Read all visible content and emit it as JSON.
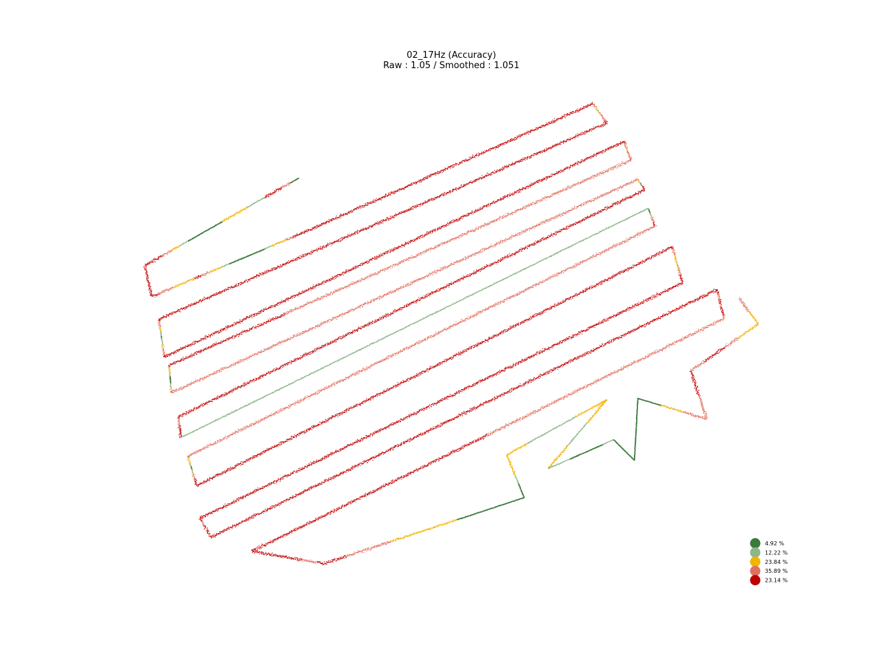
{
  "chart_data": {
    "type": "scatter",
    "title": "02_17Hz (Accuracy)",
    "subtitle": "Raw : 1.05 / Smoothed : 1.051",
    "xlabel": "",
    "ylabel": "",
    "axes_visible": false,
    "grid": false,
    "legend_placement": "bottom-right",
    "description": "GPS track of serpentine field passes, points colored by accuracy class",
    "legend": [
      {
        "label": "4.92 %",
        "value": 4.92,
        "color": "#3a7a3a"
      },
      {
        "label": "12.22 %",
        "value": 12.22,
        "color": "#8fb58a"
      },
      {
        "label": "23.84 %",
        "value": 23.84,
        "color": "#f2b400"
      },
      {
        "label": "35.89 %",
        "value": 35.89,
        "color": "#e07060"
      },
      {
        "label": "23.14 %",
        "value": 23.14,
        "color": "#c00000"
      }
    ],
    "track": {
      "vertices": [
        [
          433,
          258
        ],
        [
          210,
          385
        ],
        [
          220,
          430
        ],
        [
          445,
          335
        ],
        [
          860,
          150
        ],
        [
          880,
          178
        ],
        [
          230,
          463
        ],
        [
          238,
          518
        ],
        [
          905,
          205
        ],
        [
          915,
          232
        ],
        [
          245,
          530
        ],
        [
          248,
          570
        ],
        [
          925,
          260
        ],
        [
          935,
          275
        ],
        [
          258,
          605
        ],
        [
          262,
          635
        ],
        [
          940,
          302
        ],
        [
          950,
          328
        ],
        [
          272,
          662
        ],
        [
          285,
          705
        ],
        [
          975,
          358
        ],
        [
          990,
          410
        ],
        [
          290,
          752
        ],
        [
          305,
          780
        ],
        [
          1040,
          420
        ],
        [
          1050,
          462
        ],
        [
          365,
          800
        ],
        [
          470,
          818
        ],
        [
          760,
          722
        ],
        [
          735,
          660
        ],
        [
          880,
          580
        ],
        [
          795,
          680
        ],
        [
          890,
          638
        ],
        [
          920,
          668
        ],
        [
          925,
          578
        ],
        [
          1025,
          608
        ],
        [
          1002,
          538
        ],
        [
          1100,
          470
        ],
        [
          1072,
          432
        ]
      ],
      "segments": [
        [
          0,
          3,
          4,
          4,
          1,
          1,
          2,
          2,
          2,
          0,
          0,
          0,
          0,
          1,
          2,
          3,
          4,
          4
        ],
        [
          4,
          4,
          4,
          4
        ],
        [
          4,
          3,
          3,
          2,
          2,
          2,
          4,
          3,
          2,
          2,
          1,
          0,
          0,
          0,
          0,
          0,
          1,
          2,
          2,
          3,
          4,
          4
        ],
        [
          4,
          4,
          4,
          4
        ],
        [
          4,
          3,
          3,
          2,
          2,
          1,
          2,
          2,
          3,
          3,
          3,
          3,
          3,
          3,
          4,
          4
        ],
        [
          4,
          4,
          4,
          4
        ],
        [
          4,
          3,
          3,
          3,
          2,
          2,
          1,
          1,
          0,
          1,
          1,
          1,
          2,
          2,
          3,
          3,
          3,
          4
        ],
        [
          4,
          4,
          4,
          4
        ],
        [
          4,
          4,
          3,
          3,
          3,
          3,
          3,
          2,
          2,
          3,
          3,
          3,
          3,
          2,
          3,
          3,
          3,
          4
        ],
        [
          3,
          3,
          3,
          4
        ],
        [
          4,
          3,
          2,
          2,
          2,
          1,
          1,
          0,
          0,
          0,
          0,
          0,
          1,
          1,
          2,
          2,
          3,
          3
        ],
        [
          3,
          3,
          3,
          3
        ],
        [
          3,
          3,
          2,
          2,
          2,
          1,
          0,
          1,
          1,
          3,
          3,
          3,
          3,
          4,
          4,
          4,
          4,
          4
        ],
        [
          4,
          4,
          4,
          4
        ],
        [
          4,
          3,
          3,
          3,
          3,
          3,
          3,
          4,
          4,
          4,
          4,
          4,
          4,
          4,
          4,
          4,
          4,
          4
        ],
        [
          1,
          1,
          1,
          1
        ],
        [
          1,
          0,
          0,
          0,
          0,
          1,
          1,
          2,
          2,
          3,
          3,
          3,
          3,
          3,
          4,
          4,
          4,
          4
        ],
        [
          3,
          3,
          3,
          3
        ],
        [
          3,
          2,
          2,
          2,
          2,
          1,
          0,
          0,
          1,
          1,
          2,
          3,
          3,
          3,
          4,
          4,
          4,
          4
        ],
        [
          4,
          4,
          4,
          4
        ],
        [
          4,
          3,
          3,
          3,
          2,
          2,
          2,
          2,
          2,
          1,
          2,
          3,
          3,
          3,
          4,
          4,
          4,
          4
        ],
        [
          4,
          4,
          4,
          4
        ],
        [
          4,
          4,
          4,
          3,
          3,
          3,
          3,
          4,
          4,
          4,
          3,
          4,
          4,
          4,
          4,
          3,
          3,
          4
        ],
        [
          4,
          4,
          4,
          4
        ],
        [
          4,
          4,
          4,
          3,
          3,
          3,
          4,
          4,
          4,
          3,
          3,
          4,
          4,
          4,
          4,
          4,
          3,
          2
        ],
        [
          3,
          3,
          4,
          4
        ],
        [
          4,
          4,
          4,
          4,
          4,
          4,
          4,
          3,
          3,
          4
        ],
        [
          4,
          3,
          3,
          2,
          2,
          2,
          0,
          0,
          0
        ],
        [
          0,
          0,
          1,
          2,
          2,
          2
        ],
        [
          2,
          2,
          1,
          1,
          1,
          1,
          1,
          2,
          2,
          2
        ],
        [
          2,
          2,
          1,
          1,
          2,
          2
        ],
        [
          1,
          1,
          0,
          0,
          0,
          1
        ],
        [
          0,
          0,
          0,
          0
        ],
        [
          0,
          0,
          0,
          0
        ],
        [
          0,
          0,
          2,
          2,
          3,
          3
        ],
        [
          3,
          3,
          4,
          4
        ],
        [
          3,
          3,
          4,
          4,
          4,
          3,
          3,
          2,
          2,
          2
        ],
        [
          2,
          2,
          3,
          3
        ]
      ]
    }
  }
}
